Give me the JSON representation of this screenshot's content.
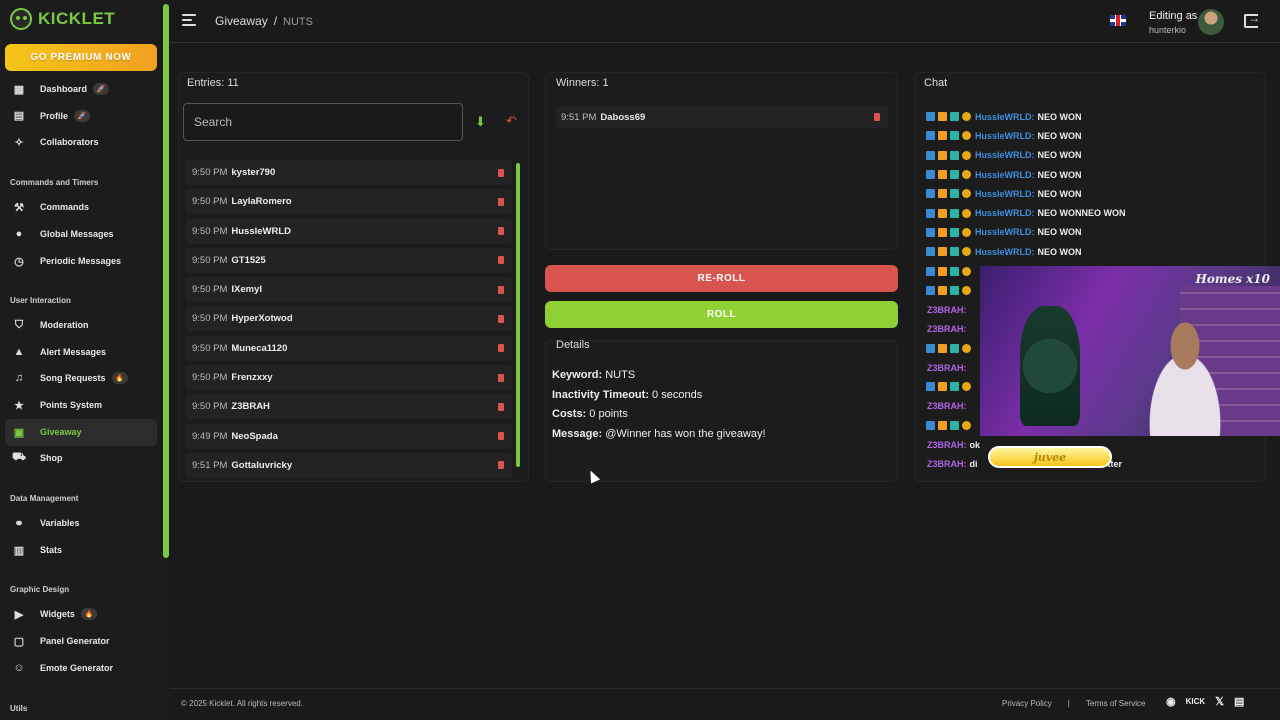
{
  "brand": {
    "name": "KICKLET"
  },
  "premium_label": "GO PREMIUM NOW",
  "sidebar": {
    "top_items": [
      {
        "label": "Dashboard",
        "icon": "dashboard-icon",
        "badge": "rocket"
      },
      {
        "label": "Profile",
        "icon": "profile-icon",
        "badge": "rocket"
      },
      {
        "label": "Collaborators",
        "icon": "handshake-icon"
      }
    ],
    "sections": [
      {
        "title": "Commands and Timers",
        "items": [
          {
            "label": "Commands",
            "icon": "hammer-icon"
          },
          {
            "label": "Global Messages",
            "icon": "chat-bubble-icon"
          },
          {
            "label": "Periodic Messages",
            "icon": "clock-icon"
          }
        ]
      },
      {
        "title": "User Interaction",
        "items": [
          {
            "label": "Moderation",
            "icon": "shield-icon"
          },
          {
            "label": "Alert Messages",
            "icon": "warning-icon"
          },
          {
            "label": "Song Requests",
            "icon": "music-icon",
            "badge": "fire"
          },
          {
            "label": "Points System",
            "icon": "star-icon"
          },
          {
            "label": "Giveaway",
            "icon": "gift-icon",
            "active": true
          },
          {
            "label": "Shop",
            "icon": "cart-icon"
          }
        ]
      },
      {
        "title": "Data Management",
        "items": [
          {
            "label": "Variables",
            "icon": "link-icon"
          },
          {
            "label": "Stats",
            "icon": "bar-chart-icon"
          }
        ]
      },
      {
        "title": "Graphic Design",
        "items": [
          {
            "label": "Widgets",
            "icon": "video-icon",
            "badge": "fire"
          },
          {
            "label": "Panel Generator",
            "icon": "panel-icon"
          },
          {
            "label": "Emote Generator",
            "icon": "smiley-icon"
          }
        ]
      },
      {
        "title": "Utils",
        "items": []
      }
    ]
  },
  "header": {
    "breadcrumb_root": "Giveaway",
    "breadcrumb_sep": "/",
    "breadcrumb_current": "NUTS",
    "editing_label": "Editing as",
    "username": "hunterkio"
  },
  "entries": {
    "title": "Entries: 11",
    "search_placeholder": "Search",
    "rows": [
      {
        "time": "9:50 PM",
        "name": "kyster790"
      },
      {
        "time": "9:50 PM",
        "name": "LaylaRomero"
      },
      {
        "time": "9:50 PM",
        "name": "HussleWRLD"
      },
      {
        "time": "9:50 PM",
        "name": "GT1525"
      },
      {
        "time": "9:50 PM",
        "name": "IXemyI"
      },
      {
        "time": "9:50 PM",
        "name": "HyperXotwod"
      },
      {
        "time": "9:50 PM",
        "name": "Muneca1120"
      },
      {
        "time": "9:50 PM",
        "name": "Frenzxxy"
      },
      {
        "time": "9:50 PM",
        "name": "Z3BRAH"
      },
      {
        "time": "9:49 PM",
        "name": "NeoSpada"
      },
      {
        "time": "9:51 PM",
        "name": "Gottaluvricky"
      }
    ]
  },
  "winners": {
    "title": "Winners: 1",
    "rows": [
      {
        "time": "9:51 PM",
        "name": "Daboss69"
      }
    ]
  },
  "buttons": {
    "reroll": "RE-ROLL",
    "roll": "ROLL"
  },
  "details": {
    "title": "Details",
    "keyword_label": "Keyword:",
    "keyword": "NUTS",
    "timeout_label": "Inactivity Timeout:",
    "timeout": "0 seconds",
    "costs_label": "Costs:",
    "costs": "0 points",
    "message_label": "Message:",
    "message": "@Winner has won the giveaway!"
  },
  "chat": {
    "title": "Chat",
    "lines": [
      {
        "user": "HussleWRLD:",
        "color": "blue",
        "badges": 4,
        "msg": "NEO WON"
      },
      {
        "user": "HussleWRLD:",
        "color": "blue",
        "badges": 4,
        "msg": "NEO WON"
      },
      {
        "user": "HussleWRLD:",
        "color": "blue",
        "badges": 4,
        "msg": "NEO WON"
      },
      {
        "user": "HussleWRLD:",
        "color": "blue",
        "badges": 4,
        "msg": "NEO WON"
      },
      {
        "user": "HussleWRLD:",
        "color": "blue",
        "badges": 4,
        "msg": "NEO WON"
      },
      {
        "user": "HussleWRLD:",
        "color": "blue",
        "badges": 4,
        "msg": "NEO WONNEO WON"
      },
      {
        "user": "HussleWRLD:",
        "color": "blue",
        "badges": 4,
        "msg": "NEO WON"
      },
      {
        "user": "HussleWRLD:",
        "color": "blue",
        "badges": 4,
        "msg": "NEO WON"
      },
      {
        "user": "",
        "color": "blue",
        "badges": 4,
        "msg": ""
      },
      {
        "user": "",
        "color": "blue",
        "badges": 4,
        "msg": ""
      },
      {
        "user": "Z3BRAH:",
        "color": "purple",
        "badges": 0,
        "msg": ""
      },
      {
        "user": "Z3BRAH:",
        "color": "purple",
        "badges": 0,
        "msg": ""
      },
      {
        "user": "",
        "color": "blue",
        "badges": 4,
        "msg": ""
      },
      {
        "user": "Z3BRAH:",
        "color": "purple",
        "badges": 0,
        "msg": ""
      },
      {
        "user": "",
        "color": "blue",
        "badges": 4,
        "msg": ""
      },
      {
        "user": "Z3BRAH:",
        "color": "purple",
        "badges": 0,
        "msg": ""
      },
      {
        "user": "",
        "color": "blue",
        "badges": 4,
        "msg": ""
      },
      {
        "user": "Z3BRAH:",
        "color": "purple",
        "badges": 0,
        "msg": "ok"
      },
      {
        "user": "Z3BRAH:",
        "color": "purple",
        "badges": 0,
        "msg": "di",
        "tail": "tter"
      }
    ]
  },
  "overlay": {
    "webcam_text": "Homes x10",
    "sticker_text": "juvee"
  },
  "footer": {
    "copyright": "© 2025 Kicklet. All rights reserved.",
    "privacy": "Privacy Policy",
    "sep": "|",
    "terms": "Terms of Service",
    "kick": "KICK",
    "x": "𝕏"
  },
  "colors": {
    "accent": "#7ac943",
    "danger": "#d9534f",
    "roll": "#8fd134",
    "premium": "#f5c518"
  }
}
